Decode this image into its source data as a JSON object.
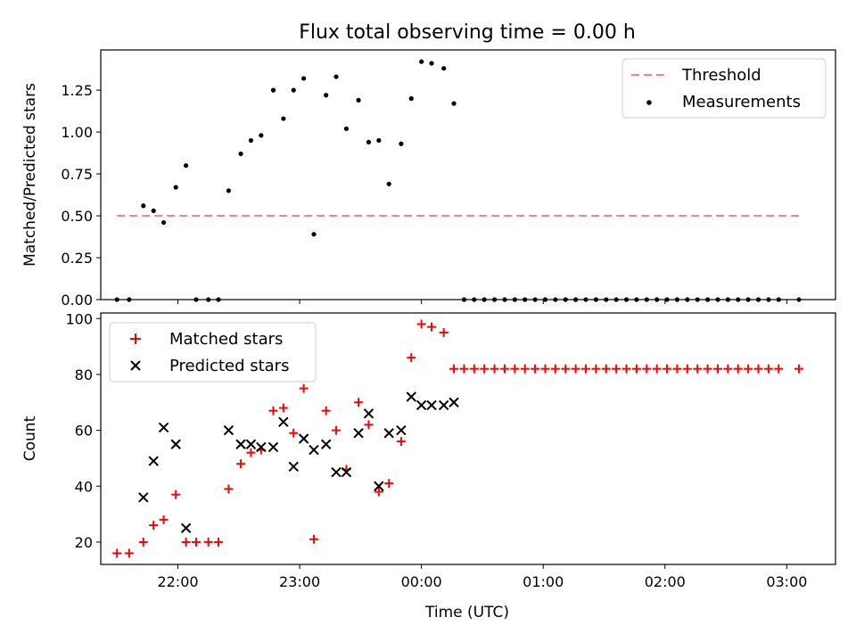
{
  "title": "Flux total observing time = 0.00 h",
  "chart_data": [
    {
      "type": "scatter",
      "title": "Flux total observing time = 0.00 h",
      "ylabel": "Matched/Predicted stars",
      "xlabel": "",
      "ylim": [
        0,
        1.49
      ],
      "xlim": [
        "21:22",
        "03:24"
      ],
      "y_ticks": [
        "0.00",
        "0.25",
        "0.50",
        "0.75",
        "1.00",
        "1.25"
      ],
      "legend_position": "top-right",
      "threshold": {
        "name": "Threshold",
        "value": 0.5,
        "x_start": "21:30",
        "x_end": "03:06",
        "color": "#ff7f7f",
        "style": "dashed"
      },
      "series": [
        {
          "name": "Measurements",
          "color": "#000000",
          "x": [
            "21:30",
            "21:36",
            "21:43",
            "21:48",
            "21:53",
            "21:59",
            "22:04",
            "22:09",
            "22:15",
            "22:20",
            "22:25",
            "22:31",
            "22:36",
            "22:41",
            "22:47",
            "22:52",
            "22:57",
            "23:02",
            "23:07",
            "23:13",
            "23:18",
            "23:23",
            "23:29",
            "23:34",
            "23:39",
            "23:44",
            "23:50",
            "23:55",
            "00:00",
            "00:05",
            "00:11",
            "00:16",
            "00:21",
            "00:26",
            "00:31",
            "00:36",
            "00:41",
            "00:46",
            "00:51",
            "00:56",
            "01:01",
            "01:06",
            "01:11",
            "01:16",
            "01:21",
            "01:26",
            "01:31",
            "01:36",
            "01:41",
            "01:46",
            "01:51",
            "01:56",
            "02:01",
            "02:06",
            "02:11",
            "02:16",
            "02:21",
            "02:26",
            "02:31",
            "02:36",
            "02:41",
            "02:46",
            "02:51",
            "02:56",
            "03:06"
          ],
          "y": [
            0,
            0,
            0.56,
            0.53,
            0.46,
            0.67,
            0.8,
            0,
            0,
            0,
            0.65,
            0.87,
            0.95,
            0.98,
            1.25,
            1.08,
            1.25,
            1.32,
            0.39,
            1.22,
            1.33,
            1.02,
            1.19,
            0.94,
            0.95,
            0.69,
            0.93,
            1.2,
            1.42,
            1.41,
            1.38,
            1.17,
            0,
            0,
            0,
            0,
            0,
            0,
            0,
            0,
            0,
            0,
            0,
            0,
            0,
            0,
            0,
            0,
            0,
            0,
            0,
            0,
            0,
            0,
            0,
            0,
            0,
            0,
            0,
            0,
            0,
            0,
            0,
            0,
            0
          ]
        }
      ]
    },
    {
      "type": "scatter",
      "title": "",
      "xlabel": "Time (UTC)",
      "ylabel": "Count",
      "ylim": [
        12,
        102
      ],
      "xlim": [
        "21:22",
        "03:24"
      ],
      "x_ticks": [
        "22:00",
        "23:00",
        "00:00",
        "01:00",
        "02:00",
        "03:00"
      ],
      "y_ticks": [
        "20",
        "40",
        "60",
        "80",
        "100"
      ],
      "legend_position": "top-left",
      "series": [
        {
          "name": "Matched stars",
          "marker": "plus",
          "color": "#ff0000",
          "x": [
            "21:30",
            "21:36",
            "21:43",
            "21:48",
            "21:53",
            "21:59",
            "22:04",
            "22:09",
            "22:15",
            "22:20",
            "22:25",
            "22:31",
            "22:36",
            "22:41",
            "22:47",
            "22:52",
            "22:57",
            "23:02",
            "23:07",
            "23:13",
            "23:18",
            "23:23",
            "23:29",
            "23:34",
            "23:39",
            "23:44",
            "23:50",
            "23:55",
            "00:00",
            "00:05",
            "00:11",
            "00:16",
            "00:21",
            "00:26",
            "00:31",
            "00:36",
            "00:41",
            "00:46",
            "00:51",
            "00:56",
            "01:01",
            "01:06",
            "01:11",
            "01:16",
            "01:21",
            "01:26",
            "01:31",
            "01:36",
            "01:41",
            "01:46",
            "01:51",
            "01:56",
            "02:01",
            "02:06",
            "02:11",
            "02:16",
            "02:21",
            "02:26",
            "02:31",
            "02:36",
            "02:41",
            "02:46",
            "02:51",
            "02:56",
            "03:06"
          ],
          "y": [
            16,
            16,
            20,
            26,
            28,
            37,
            20,
            20,
            20,
            20,
            39,
            48,
            52,
            53,
            67,
            68,
            59,
            75,
            21,
            67,
            60,
            46,
            70,
            62,
            38,
            41,
            56,
            86,
            98,
            97,
            95,
            82,
            82,
            82,
            82,
            82,
            82,
            82,
            82,
            82,
            82,
            82,
            82,
            82,
            82,
            82,
            82,
            82,
            82,
            82,
            82,
            82,
            82,
            82,
            82,
            82,
            82,
            82,
            82,
            82,
            82,
            82,
            82,
            82,
            82
          ]
        },
        {
          "name": "Predicted stars",
          "marker": "x",
          "color": "#000000",
          "x": [
            "21:43",
            "21:48",
            "21:53",
            "21:59",
            "22:04",
            "22:25",
            "22:31",
            "22:36",
            "22:41",
            "22:47",
            "22:52",
            "22:57",
            "23:02",
            "23:07",
            "23:13",
            "23:18",
            "23:23",
            "23:29",
            "23:34",
            "23:39",
            "23:44",
            "23:50",
            "23:55",
            "00:00",
            "00:05",
            "00:11",
            "00:16"
          ],
          "y": [
            36,
            49,
            61,
            55,
            25,
            60,
            55,
            55,
            54,
            54,
            63,
            47,
            57,
            53,
            55,
            45,
            45,
            59,
            66,
            40,
            59,
            60,
            72,
            69,
            69,
            69,
            70
          ]
        }
      ]
    }
  ]
}
